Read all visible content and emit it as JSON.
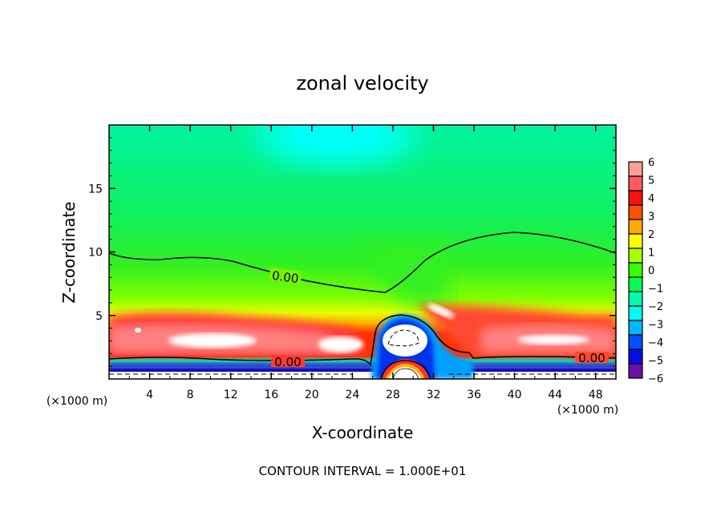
{
  "chart_data": {
    "type": "heatmap",
    "subtype": "filled-contour",
    "title": "zonal velocity",
    "xlabel": "X-coordinate",
    "ylabel": "Z-coordinate",
    "x_unit_label": "(×1000 m)",
    "y_unit_label": "(×1000 m)",
    "xlim": [
      0,
      50
    ],
    "ylim": [
      0,
      20
    ],
    "x_ticks": [
      4,
      8,
      12,
      16,
      20,
      24,
      28,
      32,
      36,
      40,
      44,
      48
    ],
    "y_ticks": [
      5,
      10,
      15
    ],
    "colorbar": {
      "range": [
        -6,
        6
      ],
      "tick_labels": [
        "6",
        "5",
        "4",
        "3",
        "2",
        "1",
        "0",
        "−1",
        "−2",
        "−3",
        "−4",
        "−5",
        "−6"
      ],
      "colors": [
        "#ff9c9c",
        "#ff5c5c",
        "#ff1010",
        "#ff5000",
        "#ffa800",
        "#f8ff00",
        "#a8ff00",
        "#38ff00",
        "#00ff50",
        "#00ffa8",
        "#00fff0",
        "#00b8ff",
        "#0050ff",
        "#0010e0",
        "#6a10a8"
      ]
    },
    "contour_labels": [
      "0.00",
      "0.00",
      "0.00"
    ],
    "footer": "CONTOUR INTERVAL = 1.000E+01"
  }
}
